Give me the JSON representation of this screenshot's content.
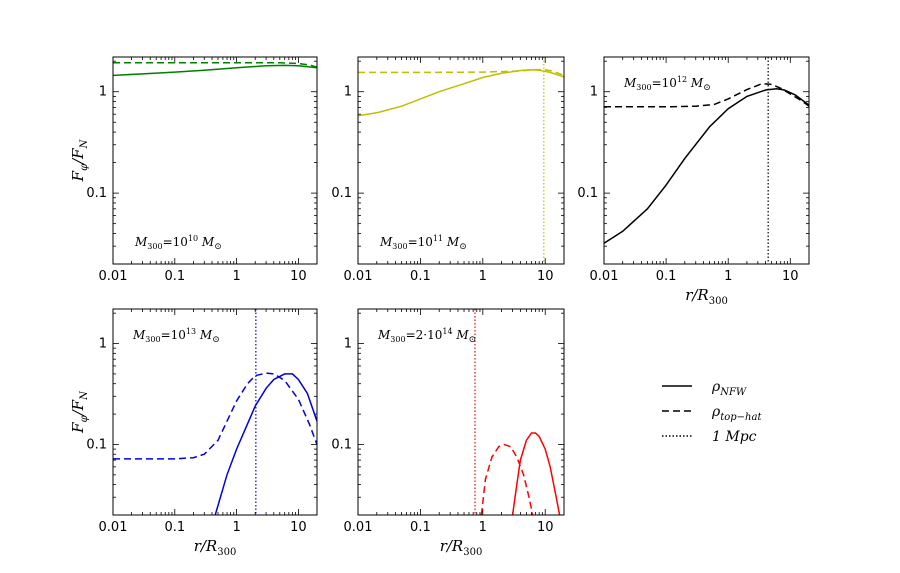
{
  "chart_data": {
    "type": "line",
    "x_scale": "log",
    "y_scale": "log",
    "xlim": [
      0.01,
      20
    ],
    "ylim": [
      0.02,
      2.2
    ],
    "xticks": [
      {
        "v": 0.01,
        "label": "0.01"
      },
      {
        "v": 0.1,
        "label": "0.1"
      },
      {
        "v": 1,
        "label": "1"
      },
      {
        "v": 10,
        "label": "10"
      }
    ],
    "yticks": [
      {
        "v": 0.1,
        "label": "0.1"
      },
      {
        "v": 1,
        "label": "1"
      }
    ],
    "xlabel_base": "r/R",
    "xlabel_sub": "300",
    "ylabel_base": "F",
    "ylabel_sub1": "φ",
    "ylabel_mid": "/F",
    "ylabel_sub2": "N",
    "legend": {
      "placement": "center-right",
      "entries": [
        {
          "style": "solid",
          "label": "ρ",
          "sub": "NFW"
        },
        {
          "style": "dashed",
          "label": "ρ",
          "sub": "top−hat"
        },
        {
          "style": "dotted",
          "label": "1 Mpc",
          "sub": ""
        }
      ]
    },
    "panels": [
      {
        "color": "#007f00",
        "annotation": {
          "prefix": "M",
          "sub": "300",
          "eq": "=10",
          "sup": "10",
          "unit": "M",
          "unit_sub": "⊙"
        },
        "vline": null,
        "nfw": {
          "x": [
            0.01,
            0.03,
            0.1,
            0.3,
            1,
            3,
            6,
            10,
            20
          ],
          "y": [
            1.45,
            1.5,
            1.56,
            1.63,
            1.72,
            1.8,
            1.82,
            1.8,
            1.72
          ]
        },
        "tophat": {
          "x": [
            0.01,
            0.1,
            1,
            5,
            10,
            15,
            20
          ],
          "y": [
            1.93,
            1.93,
            1.93,
            1.93,
            1.9,
            1.84,
            1.75
          ]
        }
      },
      {
        "color": "#bfbf00",
        "annotation": {
          "prefix": "M",
          "sub": "300",
          "eq": "=10",
          "sup": "11",
          "unit": "M",
          "unit_sub": "⊙"
        },
        "vline": 9.5,
        "nfw": {
          "x": [
            0.01,
            0.02,
            0.05,
            0.1,
            0.2,
            0.5,
            1,
            2,
            4,
            6,
            8,
            12,
            20
          ],
          "y": [
            0.58,
            0.62,
            0.72,
            0.85,
            1.0,
            1.2,
            1.38,
            1.52,
            1.62,
            1.65,
            1.63,
            1.55,
            1.4
          ]
        },
        "tophat": {
          "x": [
            0.01,
            0.1,
            1,
            4,
            6,
            9,
            13,
            20
          ],
          "y": [
            1.55,
            1.55,
            1.56,
            1.6,
            1.64,
            1.66,
            1.6,
            1.45
          ]
        }
      },
      {
        "color": "#000000",
        "annotation": {
          "prefix": "M",
          "sub": "300",
          "eq": "=10",
          "sup": "12",
          "unit": "M",
          "unit_sub": "⊙"
        },
        "vline": 4.4,
        "nfw": {
          "x": [
            0.01,
            0.02,
            0.05,
            0.1,
            0.2,
            0.5,
            1,
            2,
            4,
            6,
            8,
            12,
            20
          ],
          "y": [
            0.032,
            0.042,
            0.07,
            0.12,
            0.22,
            0.45,
            0.68,
            0.9,
            1.04,
            1.07,
            1.04,
            0.93,
            0.74
          ]
        },
        "tophat": {
          "x": [
            0.01,
            0.1,
            0.3,
            0.6,
            1,
            2,
            3.5,
            5,
            7,
            10,
            15,
            20
          ],
          "y": [
            0.71,
            0.71,
            0.72,
            0.75,
            0.85,
            1.05,
            1.2,
            1.18,
            1.08,
            0.95,
            0.82,
            0.72
          ]
        }
      },
      {
        "color": "#0000e0",
        "annotation": {
          "prefix": "M",
          "sub": "300",
          "eq": "=10",
          "sup": "13",
          "unit": "M",
          "unit_sub": "⊙"
        },
        "vline": 2.05,
        "nfw": {
          "x": [
            0.45,
            0.7,
            1,
            1.5,
            2,
            3,
            4,
            6,
            8,
            10,
            14,
            20
          ],
          "y": [
            0.02,
            0.05,
            0.09,
            0.16,
            0.24,
            0.36,
            0.44,
            0.5,
            0.5,
            0.44,
            0.32,
            0.17
          ]
        },
        "tophat": {
          "x": [
            0.01,
            0.1,
            0.2,
            0.3,
            0.5,
            0.7,
            1,
            1.5,
            2,
            3,
            4,
            6,
            10,
            15,
            20
          ],
          "y": [
            0.072,
            0.072,
            0.074,
            0.08,
            0.11,
            0.17,
            0.27,
            0.4,
            0.48,
            0.51,
            0.5,
            0.43,
            0.28,
            0.16,
            0.1
          ]
        }
      },
      {
        "color": "#ff0000",
        "annotation": {
          "prefix": "M",
          "sub": "300",
          "eq": "=2·10",
          "sup": "14",
          "unit": "M",
          "unit_sub": "⊙"
        },
        "vline": 0.75,
        "nfw": {
          "x": [
            3.0,
            3.5,
            4,
            5,
            6,
            7,
            8,
            10,
            12,
            15,
            17
          ],
          "y": [
            0.02,
            0.04,
            0.07,
            0.11,
            0.13,
            0.13,
            0.12,
            0.09,
            0.06,
            0.03,
            0.02
          ]
        },
        "tophat": {
          "x": [
            0.95,
            1.1,
            1.4,
            1.8,
            2.2,
            2.8,
            3.5,
            4.5,
            5.5,
            6.3
          ],
          "y": [
            0.02,
            0.045,
            0.075,
            0.095,
            0.1,
            0.095,
            0.075,
            0.05,
            0.03,
            0.02
          ]
        }
      }
    ]
  }
}
